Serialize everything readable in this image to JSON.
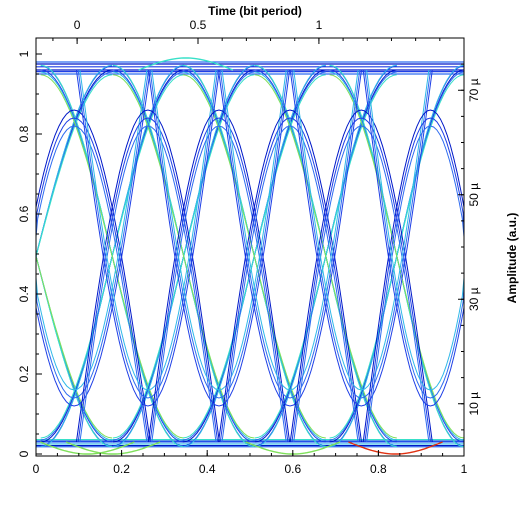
{
  "chart_data": {
    "type": "line",
    "title": "",
    "top_axis": {
      "label": "Time (bit period)",
      "ticks": [
        "0",
        "0.5",
        "1"
      ],
      "tick_values": [
        0,
        0.5,
        1
      ],
      "range": [
        -0.17,
        1.6
      ]
    },
    "bottom_axis": {
      "label": "",
      "ticks": [
        "0",
        "0.2",
        "0.4",
        "0.6",
        "0.8",
        "1"
      ],
      "tick_values": [
        0,
        0.2,
        0.4,
        0.6,
        0.8,
        1
      ],
      "range": [
        0,
        1
      ]
    },
    "left_axis": {
      "label": "",
      "ticks": [
        "0",
        "0.2",
        "0.4",
        "0.6",
        "0.8",
        "1"
      ],
      "tick_values": [
        0,
        0.2,
        0.4,
        0.6,
        0.8,
        1
      ],
      "range": [
        -0.005,
        1.04
      ]
    },
    "right_axis": {
      "label": "Amplitude (a.u.)",
      "ticks": [
        "10 µ",
        "30 µ",
        "50 µ",
        "70 µ"
      ],
      "tick_values": [
        10,
        30,
        50,
        70
      ],
      "unit_scale": "µ",
      "range": [
        0,
        80
      ]
    },
    "eye_diagram": {
      "description": "overlaid transitions of a periodic signal",
      "crossing_x": [
        0.0,
        0.178,
        0.345,
        0.51,
        0.677,
        0.843,
        1.0
      ],
      "crossing_y": 0.5,
      "high_level": 0.96,
      "low_level": 0.03,
      "inner_eye_top": 0.86,
      "inner_eye_bottom": 0.12,
      "color_scale": [
        "#0018c8",
        "#1f3fe6",
        "#2f6cf0",
        "#30b8e8",
        "#38e0c8",
        "#7fe05a",
        "#e0d020",
        "#e03010"
      ]
    },
    "grid": false
  }
}
